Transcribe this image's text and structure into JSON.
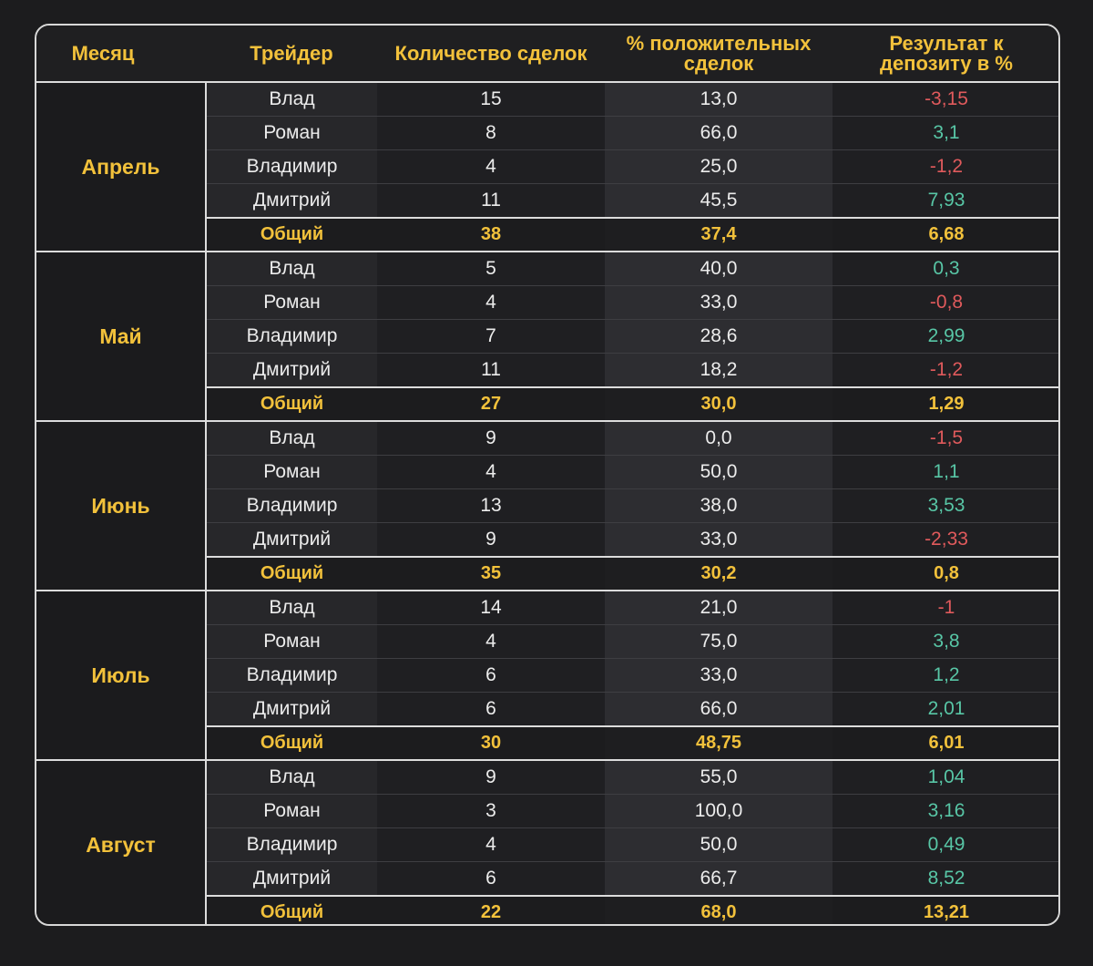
{
  "headers": {
    "month": "Месяц",
    "trader": "Трейдер",
    "count": "Количество сделок",
    "positive_pct": "% положительных сделок",
    "result": "Результат к депозиту в %"
  },
  "months": [
    {
      "name": "Апрель",
      "rows": [
        {
          "trader": "Влад",
          "count": "15",
          "positive_pct": "13,0",
          "result": "-3,15",
          "sign": "neg"
        },
        {
          "trader": "Роман",
          "count": "8",
          "positive_pct": "66,0",
          "result": "3,1",
          "sign": "pos"
        },
        {
          "trader": "Владимир",
          "count": "4",
          "positive_pct": "25,0",
          "result": "-1,2",
          "sign": "neg"
        },
        {
          "trader": "Дмитрий",
          "count": "11",
          "positive_pct": "45,5",
          "result": "7,93",
          "sign": "pos"
        }
      ],
      "total": {
        "label": "Общий",
        "count": "38",
        "positive_pct": "37,4",
        "result": "6,68"
      }
    },
    {
      "name": "Май",
      "rows": [
        {
          "trader": "Влад",
          "count": "5",
          "positive_pct": "40,0",
          "result": "0,3",
          "sign": "pos"
        },
        {
          "trader": "Роман",
          "count": "4",
          "positive_pct": "33,0",
          "result": "-0,8",
          "sign": "neg"
        },
        {
          "trader": "Владимир",
          "count": "7",
          "positive_pct": "28,6",
          "result": "2,99",
          "sign": "pos"
        },
        {
          "trader": "Дмитрий",
          "count": "11",
          "positive_pct": "18,2",
          "result": "-1,2",
          "sign": "neg"
        }
      ],
      "total": {
        "label": "Общий",
        "count": "27",
        "positive_pct": "30,0",
        "result": "1,29"
      }
    },
    {
      "name": "Июнь",
      "rows": [
        {
          "trader": "Влад",
          "count": "9",
          "positive_pct": "0,0",
          "result": "-1,5",
          "sign": "neg"
        },
        {
          "trader": "Роман",
          "count": "4",
          "positive_pct": "50,0",
          "result": "1,1",
          "sign": "pos"
        },
        {
          "trader": "Владимир",
          "count": "13",
          "positive_pct": "38,0",
          "result": "3,53",
          "sign": "pos"
        },
        {
          "trader": "Дмитрий",
          "count": "9",
          "positive_pct": "33,0",
          "result": "-2,33",
          "sign": "neg"
        }
      ],
      "total": {
        "label": "Общий",
        "count": "35",
        "positive_pct": "30,2",
        "result": "0,8"
      }
    },
    {
      "name": "Июль",
      "rows": [
        {
          "trader": "Влад",
          "count": "14",
          "positive_pct": "21,0",
          "result": "-1",
          "sign": "neg"
        },
        {
          "trader": "Роман",
          "count": "4",
          "positive_pct": "75,0",
          "result": "3,8",
          "sign": "pos"
        },
        {
          "trader": "Владимир",
          "count": "6",
          "positive_pct": "33,0",
          "result": "1,2",
          "sign": "pos"
        },
        {
          "trader": "Дмитрий",
          "count": "6",
          "positive_pct": "66,0",
          "result": "2,01",
          "sign": "pos"
        }
      ],
      "total": {
        "label": "Общий",
        "count": "30",
        "positive_pct": "48,75",
        "result": "6,01"
      }
    },
    {
      "name": "Август",
      "rows": [
        {
          "trader": "Влад",
          "count": "9",
          "positive_pct": "55,0",
          "result": "1,04",
          "sign": "pos"
        },
        {
          "trader": "Роман",
          "count": "3",
          "positive_pct": "100,0",
          "result": "3,16",
          "sign": "pos"
        },
        {
          "trader": "Владимир",
          "count": "4",
          "positive_pct": "50,0",
          "result": "0,49",
          "sign": "pos"
        },
        {
          "trader": "Дмитрий",
          "count": "6",
          "positive_pct": "66,7",
          "result": "8,52",
          "sign": "pos"
        }
      ],
      "total": {
        "label": "Общий",
        "count": "22",
        "positive_pct": "68,0",
        "result": "13,21"
      }
    }
  ],
  "colors": {
    "background": "#1c1c1e",
    "accent_gold": "#f2c13b",
    "negative": "#e05a5c",
    "positive": "#58c6a6",
    "border": "#dcdcdc"
  }
}
